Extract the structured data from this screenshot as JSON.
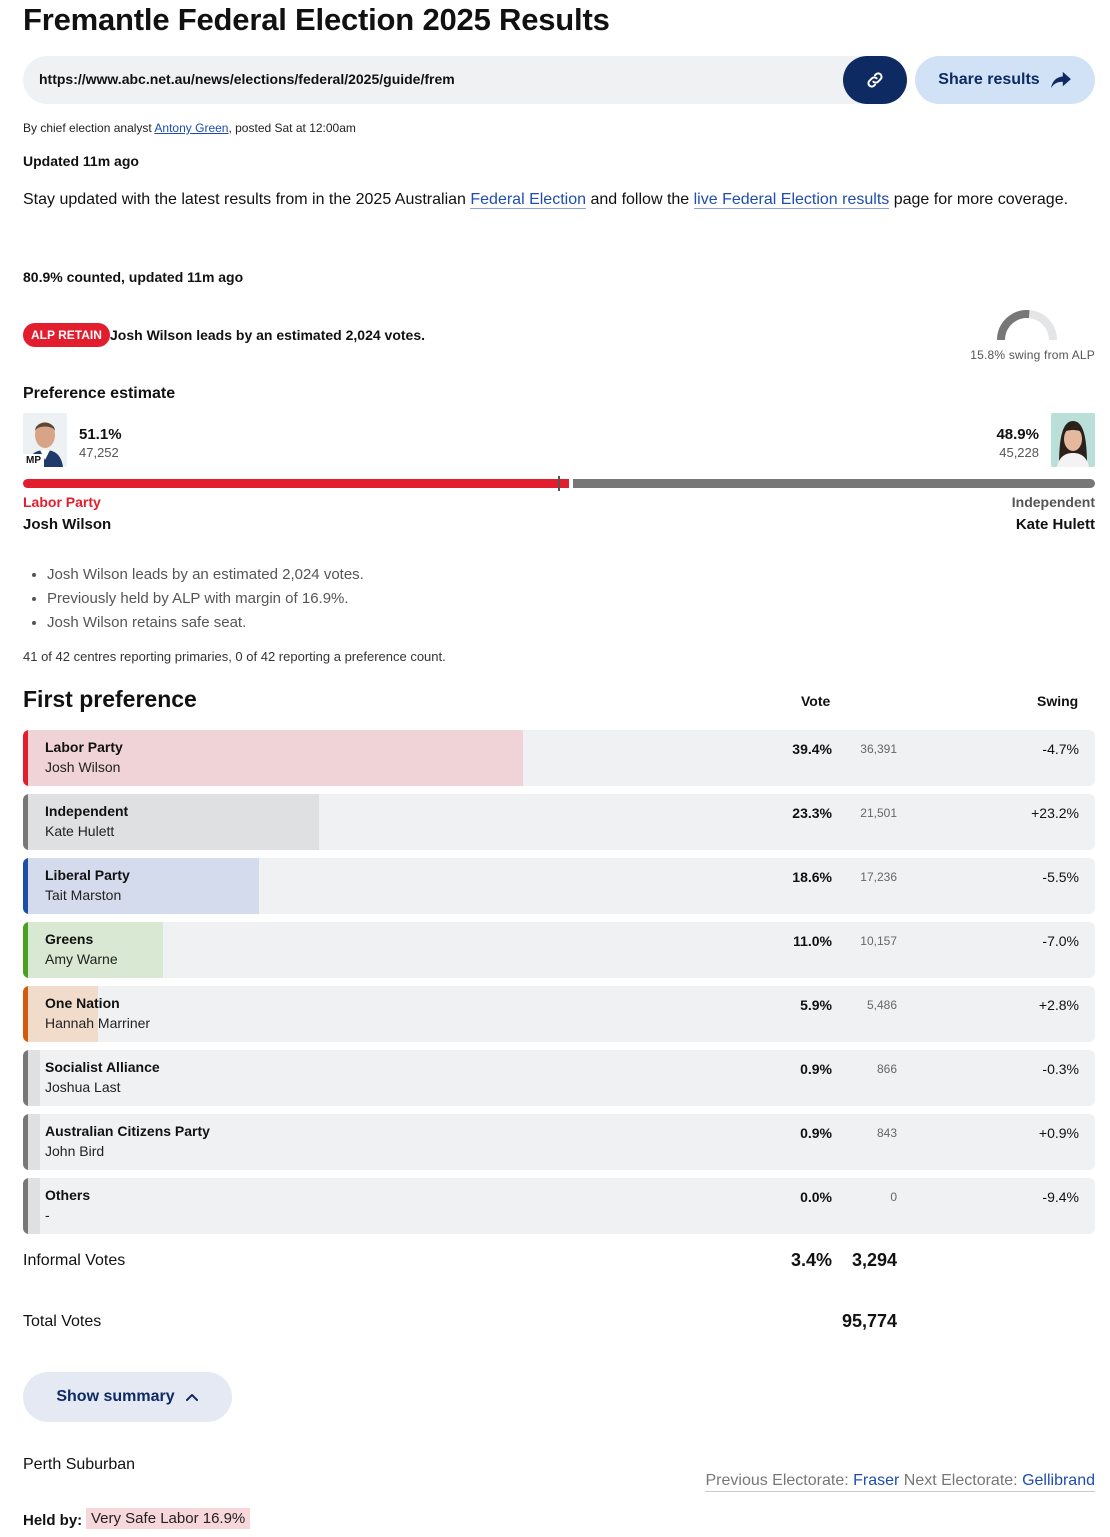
{
  "page": {
    "title": "Fremantle Federal Election 2025 Results",
    "url": "https://www.abc.net.au/news/elections/federal/2025/guide/frem",
    "share_label": "Share results"
  },
  "byline": {
    "prefix": "By chief election analyst ",
    "author": "Antony Green",
    "suffix": ", posted Sat at  12:00am"
  },
  "updated": "Updated 11m ago",
  "intro": {
    "part1": "Stay updated with the latest results from in the 2025 Australian ",
    "link1": "Federal Election",
    "part2": " and follow the ",
    "link2": "live Federal Election results",
    "part3": " page for more coverage."
  },
  "counted": "80.9% counted, updated 11m ago",
  "status": {
    "badge": "ALP RETAIN",
    "lead_text": "Josh Wilson leads by an estimated 2,024 votes.",
    "swing_text": "15.8% swing from ALP",
    "swing_value": 15.8
  },
  "preference": {
    "heading": "Preference estimate",
    "mp_tag": "MP",
    "left": {
      "pct": "51.1%",
      "pct_value": 51.1,
      "votes": "47,252",
      "party": "Labor Party",
      "candidate": "Josh Wilson"
    },
    "right": {
      "pct": "48.9%",
      "pct_value": 48.9,
      "votes": "45,228",
      "party": "Independent",
      "candidate": "Kate Hulett"
    }
  },
  "notes": [
    "Josh Wilson leads by an estimated 2,024 votes.",
    "Previously held by ALP with margin of 16.9%.",
    "Josh Wilson retains safe seat."
  ],
  "centres": "41 of 42 centres reporting primaries, 0 of 42 reporting a preference count.",
  "first_preference": {
    "heading": "First preference",
    "col_vote": "Vote",
    "col_swing": "Swing",
    "rows": [
      {
        "party": "Labor Party",
        "candidate": "Josh Wilson",
        "pct": "39.4%",
        "value": 39.4,
        "votes": "36,391",
        "swing": "-4.7%",
        "color": "#e11d2e",
        "fill": "#f0d3d6"
      },
      {
        "party": "Independent",
        "candidate": "Kate Hulett",
        "pct": "23.3%",
        "value": 23.3,
        "votes": "21,501",
        "swing": "+23.2%",
        "color": "#777777",
        "fill": "#dfe0e2"
      },
      {
        "party": "Liberal Party",
        "candidate": "Tait Marston",
        "pct": "18.6%",
        "value": 18.6,
        "votes": "17,236",
        "swing": "-5.5%",
        "color": "#1c4fa8",
        "fill": "#d3dbec"
      },
      {
        "party": "Greens",
        "candidate": "Amy Warne",
        "pct": "11.0%",
        "value": 11.0,
        "votes": "10,157",
        "swing": "-7.0%",
        "color": "#4aa11e",
        "fill": "#d9e8d3"
      },
      {
        "party": "One Nation",
        "candidate": "Hannah Marriner",
        "pct": "5.9%",
        "value": 5.9,
        "votes": "5,486",
        "swing": "+2.8%",
        "color": "#d45a0c",
        "fill": "#f1dccc"
      },
      {
        "party": "Socialist Alliance",
        "candidate": "Joshua Last",
        "pct": "0.9%",
        "value": 0.9,
        "votes": "866",
        "swing": "-0.3%",
        "color": "#777777",
        "fill": "#dfe0e2"
      },
      {
        "party": "Australian Citizens Party",
        "candidate": "John Bird",
        "pct": "0.9%",
        "value": 0.9,
        "votes": "843",
        "swing": "+0.9%",
        "color": "#777777",
        "fill": "#dfe0e2"
      },
      {
        "party": "Others",
        "candidate": "-",
        "pct": "0.0%",
        "value": 0.0,
        "votes": "0",
        "swing": "-9.4%",
        "color": "#777777",
        "fill": "#dfe0e2"
      }
    ]
  },
  "informal": {
    "label": "Informal Votes",
    "pct": "3.4%",
    "count": "3,294"
  },
  "total": {
    "label": "Total Votes",
    "count": "95,774"
  },
  "summary_label": "Show summary",
  "region": "Perth Suburban",
  "nav": {
    "prev_label": "Previous Electorate: ",
    "prev": "Fraser",
    "next_label": " Next Electorate: ",
    "next": "Gellibrand"
  },
  "held_by": {
    "label": "Held by:",
    "value": "Very Safe Labor 16.9%"
  }
}
